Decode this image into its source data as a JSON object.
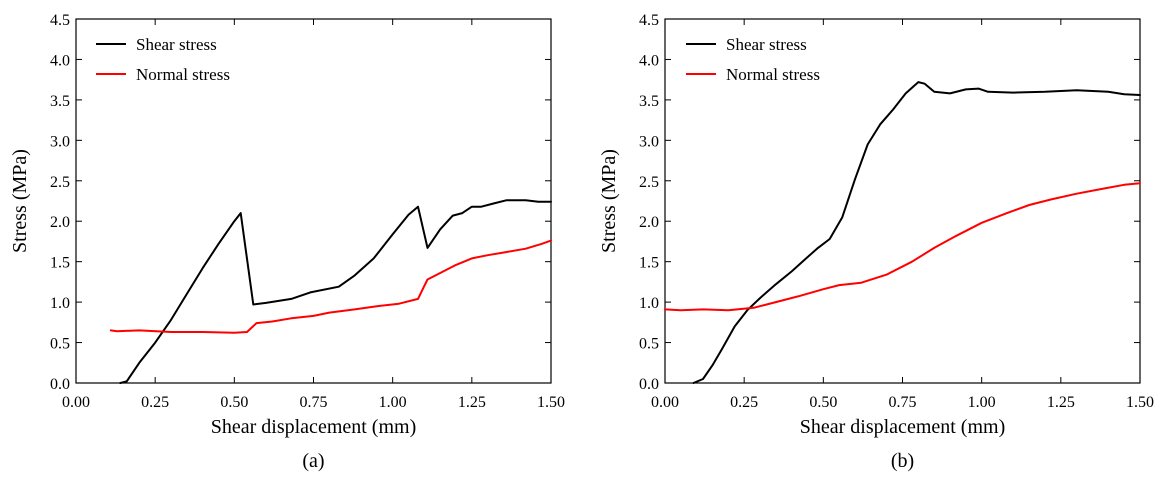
{
  "chart_data": [
    {
      "type": "line",
      "panel_label": "(a)",
      "xlabel": "Shear displacement (mm)",
      "ylabel": "Stress (MPa)",
      "xlim": [
        0,
        1.5
      ],
      "ylim": [
        0,
        4.5
      ],
      "xticks": [
        "0.00",
        "0.25",
        "0.50",
        "0.75",
        "1.00",
        "1.25",
        "1.50"
      ],
      "yticks": [
        "0.0",
        "0.5",
        "1.0",
        "1.5",
        "2.0",
        "2.5",
        "3.0",
        "3.5",
        "4.0",
        "4.5"
      ],
      "legend_position": "top-left",
      "series": [
        {
          "name": "Shear stress",
          "color": "#000000",
          "points": [
            [
              0.14,
              0.0
            ],
            [
              0.16,
              0.02
            ],
            [
              0.2,
              0.25
            ],
            [
              0.25,
              0.5
            ],
            [
              0.3,
              0.78
            ],
            [
              0.35,
              1.1
            ],
            [
              0.4,
              1.42
            ],
            [
              0.45,
              1.72
            ],
            [
              0.5,
              2.0
            ],
            [
              0.52,
              2.1
            ],
            [
              0.56,
              0.97
            ],
            [
              0.6,
              0.99
            ],
            [
              0.68,
              1.04
            ],
            [
              0.74,
              1.12
            ],
            [
              0.83,
              1.19
            ],
            [
              0.88,
              1.33
            ],
            [
              0.94,
              1.54
            ],
            [
              1.0,
              1.84
            ],
            [
              1.05,
              2.08
            ],
            [
              1.08,
              2.18
            ],
            [
              1.11,
              1.67
            ],
            [
              1.15,
              1.9
            ],
            [
              1.19,
              2.07
            ],
            [
              1.22,
              2.1
            ],
            [
              1.25,
              2.18
            ],
            [
              1.28,
              2.18
            ],
            [
              1.32,
              2.22
            ],
            [
              1.36,
              2.26
            ],
            [
              1.42,
              2.26
            ],
            [
              1.46,
              2.24
            ],
            [
              1.5,
              2.24
            ]
          ]
        },
        {
          "name": "Normal stress",
          "color": "#ff0000",
          "points": [
            [
              0.11,
              0.65
            ],
            [
              0.13,
              0.64
            ],
            [
              0.2,
              0.65
            ],
            [
              0.3,
              0.63
            ],
            [
              0.4,
              0.63
            ],
            [
              0.5,
              0.62
            ],
            [
              0.54,
              0.63
            ],
            [
              0.57,
              0.74
            ],
            [
              0.62,
              0.76
            ],
            [
              0.68,
              0.8
            ],
            [
              0.75,
              0.83
            ],
            [
              0.8,
              0.87
            ],
            [
              0.88,
              0.91
            ],
            [
              0.95,
              0.95
            ],
            [
              1.02,
              0.98
            ],
            [
              1.08,
              1.04
            ],
            [
              1.1,
              1.2
            ],
            [
              1.11,
              1.28
            ],
            [
              1.15,
              1.36
            ],
            [
              1.2,
              1.46
            ],
            [
              1.25,
              1.54
            ],
            [
              1.3,
              1.58
            ],
            [
              1.36,
              1.62
            ],
            [
              1.42,
              1.66
            ],
            [
              1.47,
              1.72
            ],
            [
              1.5,
              1.76
            ]
          ]
        }
      ]
    },
    {
      "type": "line",
      "panel_label": "(b)",
      "xlabel": "Shear displacement (mm)",
      "ylabel": "Stress (MPa)",
      "xlim": [
        0,
        1.5
      ],
      "ylim": [
        0,
        4.5
      ],
      "xticks": [
        "0.00",
        "0.25",
        "0.50",
        "0.75",
        "1.00",
        "1.25",
        "1.50"
      ],
      "yticks": [
        "0.0",
        "0.5",
        "1.0",
        "1.5",
        "2.0",
        "2.5",
        "3.0",
        "3.5",
        "4.0",
        "4.5"
      ],
      "legend_position": "top-left",
      "series": [
        {
          "name": "Shear stress",
          "color": "#000000",
          "points": [
            [
              0.09,
              0.0
            ],
            [
              0.12,
              0.05
            ],
            [
              0.15,
              0.22
            ],
            [
              0.18,
              0.42
            ],
            [
              0.22,
              0.7
            ],
            [
              0.26,
              0.9
            ],
            [
              0.3,
              1.05
            ],
            [
              0.35,
              1.22
            ],
            [
              0.4,
              1.38
            ],
            [
              0.44,
              1.52
            ],
            [
              0.48,
              1.66
            ],
            [
              0.52,
              1.78
            ],
            [
              0.56,
              2.05
            ],
            [
              0.6,
              2.52
            ],
            [
              0.64,
              2.95
            ],
            [
              0.68,
              3.2
            ],
            [
              0.72,
              3.38
            ],
            [
              0.76,
              3.58
            ],
            [
              0.8,
              3.72
            ],
            [
              0.82,
              3.7
            ],
            [
              0.85,
              3.6
            ],
            [
              0.9,
              3.58
            ],
            [
              0.95,
              3.63
            ],
            [
              0.99,
              3.64
            ],
            [
              1.02,
              3.6
            ],
            [
              1.1,
              3.59
            ],
            [
              1.2,
              3.6
            ],
            [
              1.3,
              3.62
            ],
            [
              1.4,
              3.6
            ],
            [
              1.45,
              3.57
            ],
            [
              1.5,
              3.56
            ]
          ]
        },
        {
          "name": "Normal stress",
          "color": "#ff0000",
          "points": [
            [
              0.0,
              0.91
            ],
            [
              0.05,
              0.9
            ],
            [
              0.12,
              0.91
            ],
            [
              0.2,
              0.9
            ],
            [
              0.28,
              0.93
            ],
            [
              0.35,
              1.0
            ],
            [
              0.42,
              1.07
            ],
            [
              0.5,
              1.16
            ],
            [
              0.55,
              1.21
            ],
            [
              0.62,
              1.24
            ],
            [
              0.7,
              1.34
            ],
            [
              0.78,
              1.5
            ],
            [
              0.85,
              1.67
            ],
            [
              0.92,
              1.82
            ],
            [
              1.0,
              1.98
            ],
            [
              1.08,
              2.1
            ],
            [
              1.15,
              2.2
            ],
            [
              1.22,
              2.27
            ],
            [
              1.3,
              2.34
            ],
            [
              1.38,
              2.4
            ],
            [
              1.45,
              2.45
            ],
            [
              1.5,
              2.47
            ]
          ]
        }
      ]
    }
  ]
}
